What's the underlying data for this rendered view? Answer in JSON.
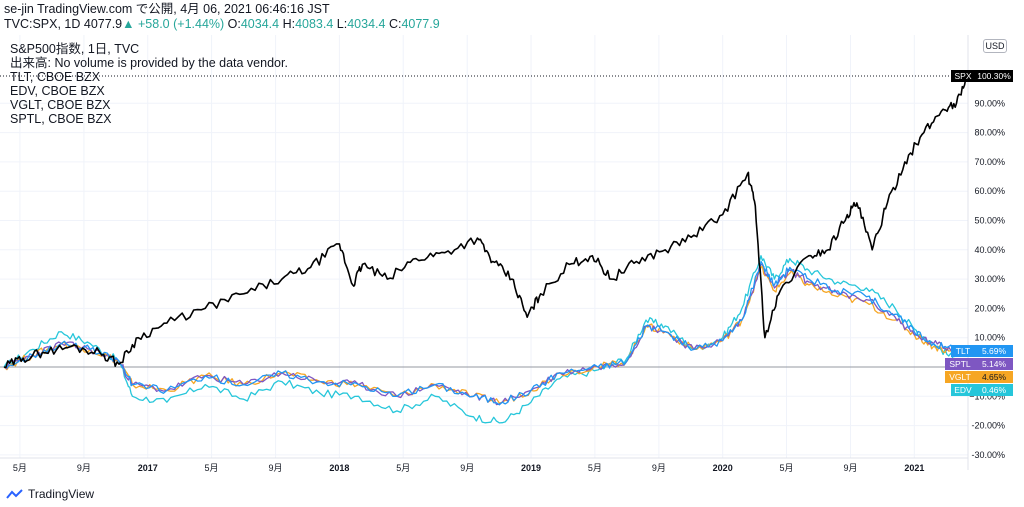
{
  "header": {
    "publisher": "se-jin TradingView.com で公開, 4月 06, 2021 06:46:16 JST",
    "symbol": "TVC:SPX, 1D",
    "last": "4077.9",
    "change": "+58.0 (+1.44%)",
    "o_label": "O:",
    "o": "4034.4",
    "h_label": "H:",
    "h": "4083.4",
    "l_label": "L:",
    "l": "4034.4",
    "c_label": "C:",
    "c": "4077.9"
  },
  "legend": [
    "S&P500指数, 1日, TVC",
    "出来高: No volume is provided by the data vendor.",
    "TLT, CBOE BZX",
    "EDV, CBOE BZX",
    "VGLT, CBOE BZX",
    "SPTL, CBOE BZX"
  ],
  "currency": "USD",
  "footer": {
    "brand": "TradingView"
  },
  "colors": {
    "SPX": "#000000",
    "TLT": "#2196f3",
    "SPTL": "#7e57c2",
    "VGLT": "#f6a623",
    "EDV": "#26c6da"
  },
  "chart_data": {
    "type": "line",
    "x_unit": "year",
    "xlim": [
      2016.25,
      2021.28
    ],
    "ylim": [
      -32,
      110
    ],
    "y_ticks": [
      -30,
      -20,
      -10,
      10,
      20,
      30,
      40,
      50,
      60,
      70,
      80,
      90
    ],
    "y_tick_labels": [
      "-30.00%",
      "-20.00%",
      "−10.00%",
      "10.00%",
      "20.00%",
      "30.00%",
      "40.00%",
      "50.00%",
      "60.00%",
      "70.00%",
      "80.00%",
      "90.00%"
    ],
    "x_ticks": [
      {
        "x": 2016.333,
        "label": "5月"
      },
      {
        "x": 2016.667,
        "label": "9月"
      },
      {
        "x": 2017.0,
        "label": "2017"
      },
      {
        "x": 2017.333,
        "label": "5月"
      },
      {
        "x": 2017.667,
        "label": "9月"
      },
      {
        "x": 2018.0,
        "label": "2018"
      },
      {
        "x": 2018.333,
        "label": "5月"
      },
      {
        "x": 2018.667,
        "label": "9月"
      },
      {
        "x": 2019.0,
        "label": "2019"
      },
      {
        "x": 2019.333,
        "label": "5月"
      },
      {
        "x": 2019.667,
        "label": "9月"
      },
      {
        "x": 2020.0,
        "label": "2020"
      },
      {
        "x": 2020.333,
        "label": "5月"
      },
      {
        "x": 2020.667,
        "label": "9月"
      },
      {
        "x": 2021.0,
        "label": "2021"
      }
    ],
    "series": [
      {
        "name": "SPX",
        "end_label": "100.30%",
        "x": [
          2016.25,
          2016.35,
          2016.45,
          2016.6,
          2016.75,
          2016.85,
          2016.95,
          2017.1,
          2017.3,
          2017.5,
          2017.7,
          2017.85,
          2018.0,
          2018.07,
          2018.12,
          2018.25,
          2018.4,
          2018.55,
          2018.72,
          2018.8,
          2018.9,
          2018.98,
          2019.05,
          2019.2,
          2019.32,
          2019.42,
          2019.55,
          2019.7,
          2019.85,
          2020.0,
          2020.13,
          2020.17,
          2020.22,
          2020.3,
          2020.45,
          2020.55,
          2020.65,
          2020.7,
          2020.78,
          2020.85,
          2020.95,
          2021.05,
          2021.15,
          2021.22,
          2021.28
        ],
        "values": [
          0,
          3,
          5,
          7,
          5,
          1,
          10,
          15,
          20,
          25,
          30,
          34,
          42,
          28,
          35,
          30,
          37,
          39,
          44,
          36,
          30,
          17,
          25,
          35,
          38,
          30,
          36,
          40,
          45,
          52,
          66,
          55,
          10,
          26,
          38,
          40,
          52,
          56,
          40,
          54,
          70,
          80,
          88,
          90,
          100.3
        ]
      },
      {
        "name": "TLT",
        "end_label": "5.69%",
        "x": [
          2016.25,
          2016.4,
          2016.55,
          2016.7,
          2016.85,
          2016.92,
          2017.1,
          2017.3,
          2017.5,
          2017.7,
          2017.9,
          2018.1,
          2018.3,
          2018.5,
          2018.7,
          2018.85,
          2019.0,
          2019.15,
          2019.35,
          2019.5,
          2019.6,
          2019.7,
          2019.85,
          2020.0,
          2020.1,
          2020.2,
          2020.27,
          2020.35,
          2020.45,
          2020.6,
          2020.75,
          2020.9,
          2021.0,
          2021.1,
          2021.2,
          2021.28
        ],
        "values": [
          0,
          4,
          8,
          6,
          2,
          -6,
          -8,
          -3,
          -6,
          -2,
          -5,
          -6,
          -10,
          -6,
          -10,
          -12,
          -8,
          -2,
          0,
          2,
          14,
          12,
          6,
          9,
          16,
          36,
          28,
          34,
          30,
          26,
          24,
          18,
          12,
          8,
          6,
          5.69
        ]
      },
      {
        "name": "SPTL",
        "end_label": "5.14%",
        "x": [
          2016.25,
          2016.4,
          2016.55,
          2016.7,
          2016.85,
          2016.92,
          2017.1,
          2017.3,
          2017.5,
          2017.7,
          2017.9,
          2018.1,
          2018.3,
          2018.5,
          2018.7,
          2018.85,
          2019.0,
          2019.15,
          2019.35,
          2019.5,
          2019.6,
          2019.7,
          2019.85,
          2020.0,
          2020.1,
          2020.2,
          2020.27,
          2020.35,
          2020.45,
          2020.6,
          2020.75,
          2020.9,
          2021.0,
          2021.1,
          2021.2,
          2021.28
        ],
        "values": [
          0,
          4,
          8,
          6,
          2,
          -6,
          -8,
          -3,
          -6,
          -2,
          -5,
          -6,
          -10,
          -6,
          -10,
          -12,
          -8,
          -2,
          0,
          2,
          14,
          12,
          6,
          9,
          16,
          35,
          27,
          33,
          29,
          25,
          23,
          17,
          11,
          8,
          6,
          5.14
        ]
      },
      {
        "name": "VGLT",
        "end_label": "4.65%",
        "x": [
          2016.25,
          2016.4,
          2016.55,
          2016.7,
          2016.85,
          2016.92,
          2017.1,
          2017.3,
          2017.5,
          2017.7,
          2017.9,
          2018.1,
          2018.3,
          2018.5,
          2018.7,
          2018.85,
          2019.0,
          2019.15,
          2019.35,
          2019.5,
          2019.6,
          2019.7,
          2019.85,
          2020.0,
          2020.1,
          2020.2,
          2020.27,
          2020.35,
          2020.45,
          2020.6,
          2020.75,
          2020.9,
          2021.0,
          2021.1,
          2021.2,
          2021.28
        ],
        "values": [
          0,
          4,
          8,
          6,
          2,
          -6,
          -8,
          -3,
          -6,
          -2,
          -5,
          -6,
          -10,
          -6,
          -10,
          -12,
          -8,
          -2,
          0,
          2,
          14,
          12,
          6,
          9,
          16,
          34,
          26,
          32,
          28,
          24,
          22,
          16,
          11,
          7,
          5,
          4.65
        ]
      },
      {
        "name": "EDV",
        "end_label": "0.46%",
        "x": [
          2016.25,
          2016.4,
          2016.55,
          2016.7,
          2016.85,
          2016.92,
          2017.1,
          2017.3,
          2017.5,
          2017.7,
          2017.9,
          2018.1,
          2018.3,
          2018.5,
          2018.7,
          2018.85,
          2019.0,
          2019.15,
          2019.35,
          2019.5,
          2019.6,
          2019.7,
          2019.85,
          2020.0,
          2020.1,
          2020.2,
          2020.27,
          2020.35,
          2020.45,
          2020.6,
          2020.75,
          2020.9,
          2021.0,
          2021.1,
          2021.2,
          2021.28
        ],
        "values": [
          0,
          6,
          12,
          8,
          2,
          -10,
          -12,
          -6,
          -11,
          -5,
          -9,
          -10,
          -15,
          -10,
          -17,
          -19,
          -12,
          -4,
          -1,
          3,
          16,
          14,
          6,
          10,
          20,
          38,
          30,
          37,
          33,
          29,
          27,
          20,
          13,
          8,
          3,
          0.46
        ]
      }
    ]
  }
}
